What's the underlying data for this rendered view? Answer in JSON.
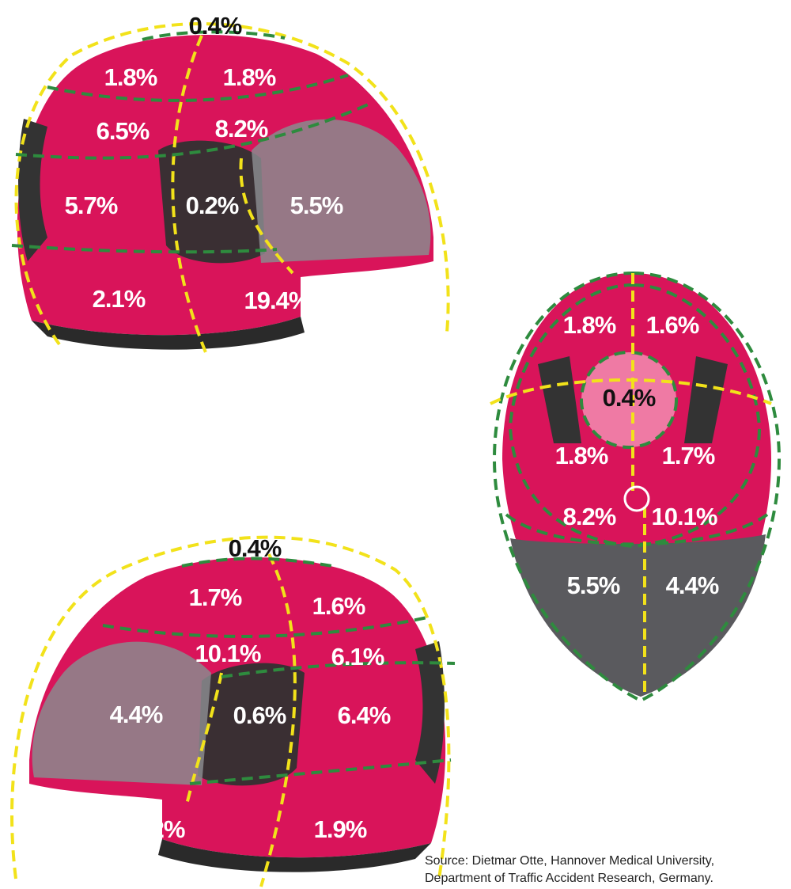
{
  "views": [
    {
      "labels": [
        "0.4%",
        "1.8%",
        "1.8%",
        "6.5%",
        "8.2%",
        "5.7%",
        "0.2%",
        "5.5%",
        "2.1%",
        "19.4%"
      ]
    },
    {
      "labels": [
        "1.8%",
        "1.6%",
        "0.4%",
        "1.8%",
        "1.7%",
        "8.2%",
        "10.1%",
        "5.5%",
        "4.4%"
      ]
    },
    {
      "labels": [
        "0.4%",
        "1.7%",
        "1.6%",
        "10.1%",
        "6.1%",
        "4.4%",
        "0.6%",
        "6.4%",
        "15.2%",
        "1.9%"
      ]
    }
  ],
  "source": [
    "Source: Dietmar Otte, Hannover Medical University,",
    "Department of Traffic Accident Research, Germany."
  ]
}
